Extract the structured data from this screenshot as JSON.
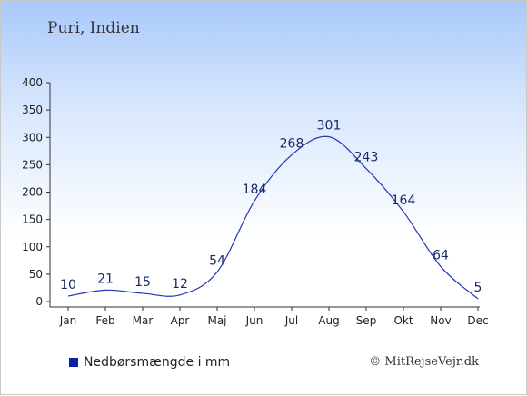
{
  "title": "Puri, Indien",
  "legend_label": "Nedbørsmængde i mm",
  "copyright": "© MitRejseVejr.dk",
  "colors": {
    "line": "#1f37b5",
    "legend_swatch": "#0a20a6",
    "axis": "#333333",
    "label": "#1a2a66"
  },
  "chart_data": {
    "type": "line",
    "categories": [
      "Jan",
      "Feb",
      "Mar",
      "Apr",
      "Maj",
      "Jun",
      "Jul",
      "Aug",
      "Sep",
      "Okt",
      "Nov",
      "Dec"
    ],
    "series": [
      {
        "name": "Nedbørsmængde i mm",
        "values": [
          10,
          21,
          15,
          12,
          54,
          184,
          268,
          301,
          243,
          164,
          64,
          5
        ]
      }
    ],
    "ylim": [
      0,
      400
    ],
    "yticks": [
      0,
      50,
      100,
      150,
      200,
      250,
      300,
      350,
      400
    ],
    "grid": false,
    "legend_position": "bottom-left"
  }
}
